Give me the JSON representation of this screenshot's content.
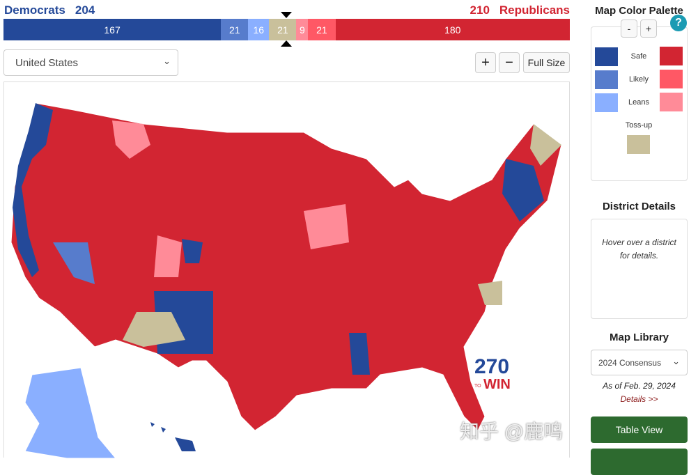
{
  "header": {
    "dem_label": "Democrats",
    "dem_total": "204",
    "rep_label": "Republicans",
    "rep_total": "210"
  },
  "bar": [
    {
      "key": "safe_d",
      "value": 167,
      "color": "#244999"
    },
    {
      "key": "likely_d",
      "value": 21,
      "color": "#577ccc"
    },
    {
      "key": "leans_d",
      "value": 16,
      "color": "#8aafff"
    },
    {
      "key": "tossup",
      "value": 21,
      "color": "#c9c09b"
    },
    {
      "key": "leans_r",
      "value": 9,
      "color": "#ff8b98"
    },
    {
      "key": "likely_r",
      "value": 21,
      "color": "#ff5865"
    },
    {
      "key": "safe_r",
      "value": 180,
      "color": "#d22532"
    }
  ],
  "state_select": {
    "value": "United States"
  },
  "toolbar": {
    "zoom_in": "+",
    "zoom_out": "−",
    "full_size": "Full Size"
  },
  "palette": {
    "title": "Map Color Palette",
    "minus": "-",
    "plus": "+",
    "help": "?",
    "safe": "Safe",
    "likely": "Likely",
    "leans": "Leans",
    "tossup": "Toss-up"
  },
  "district": {
    "title": "District Details",
    "hint": "Hover over a district for details."
  },
  "library": {
    "title": "Map Library",
    "selected": "2024 Consensus",
    "as_of": "As of Feb. 29, 2024",
    "details": "Details >>",
    "table_view": "Table View"
  },
  "logo": {
    "number": "270",
    "to": "TO",
    "win": "WIN"
  },
  "watermark": "知乎 @鹿鸣"
}
